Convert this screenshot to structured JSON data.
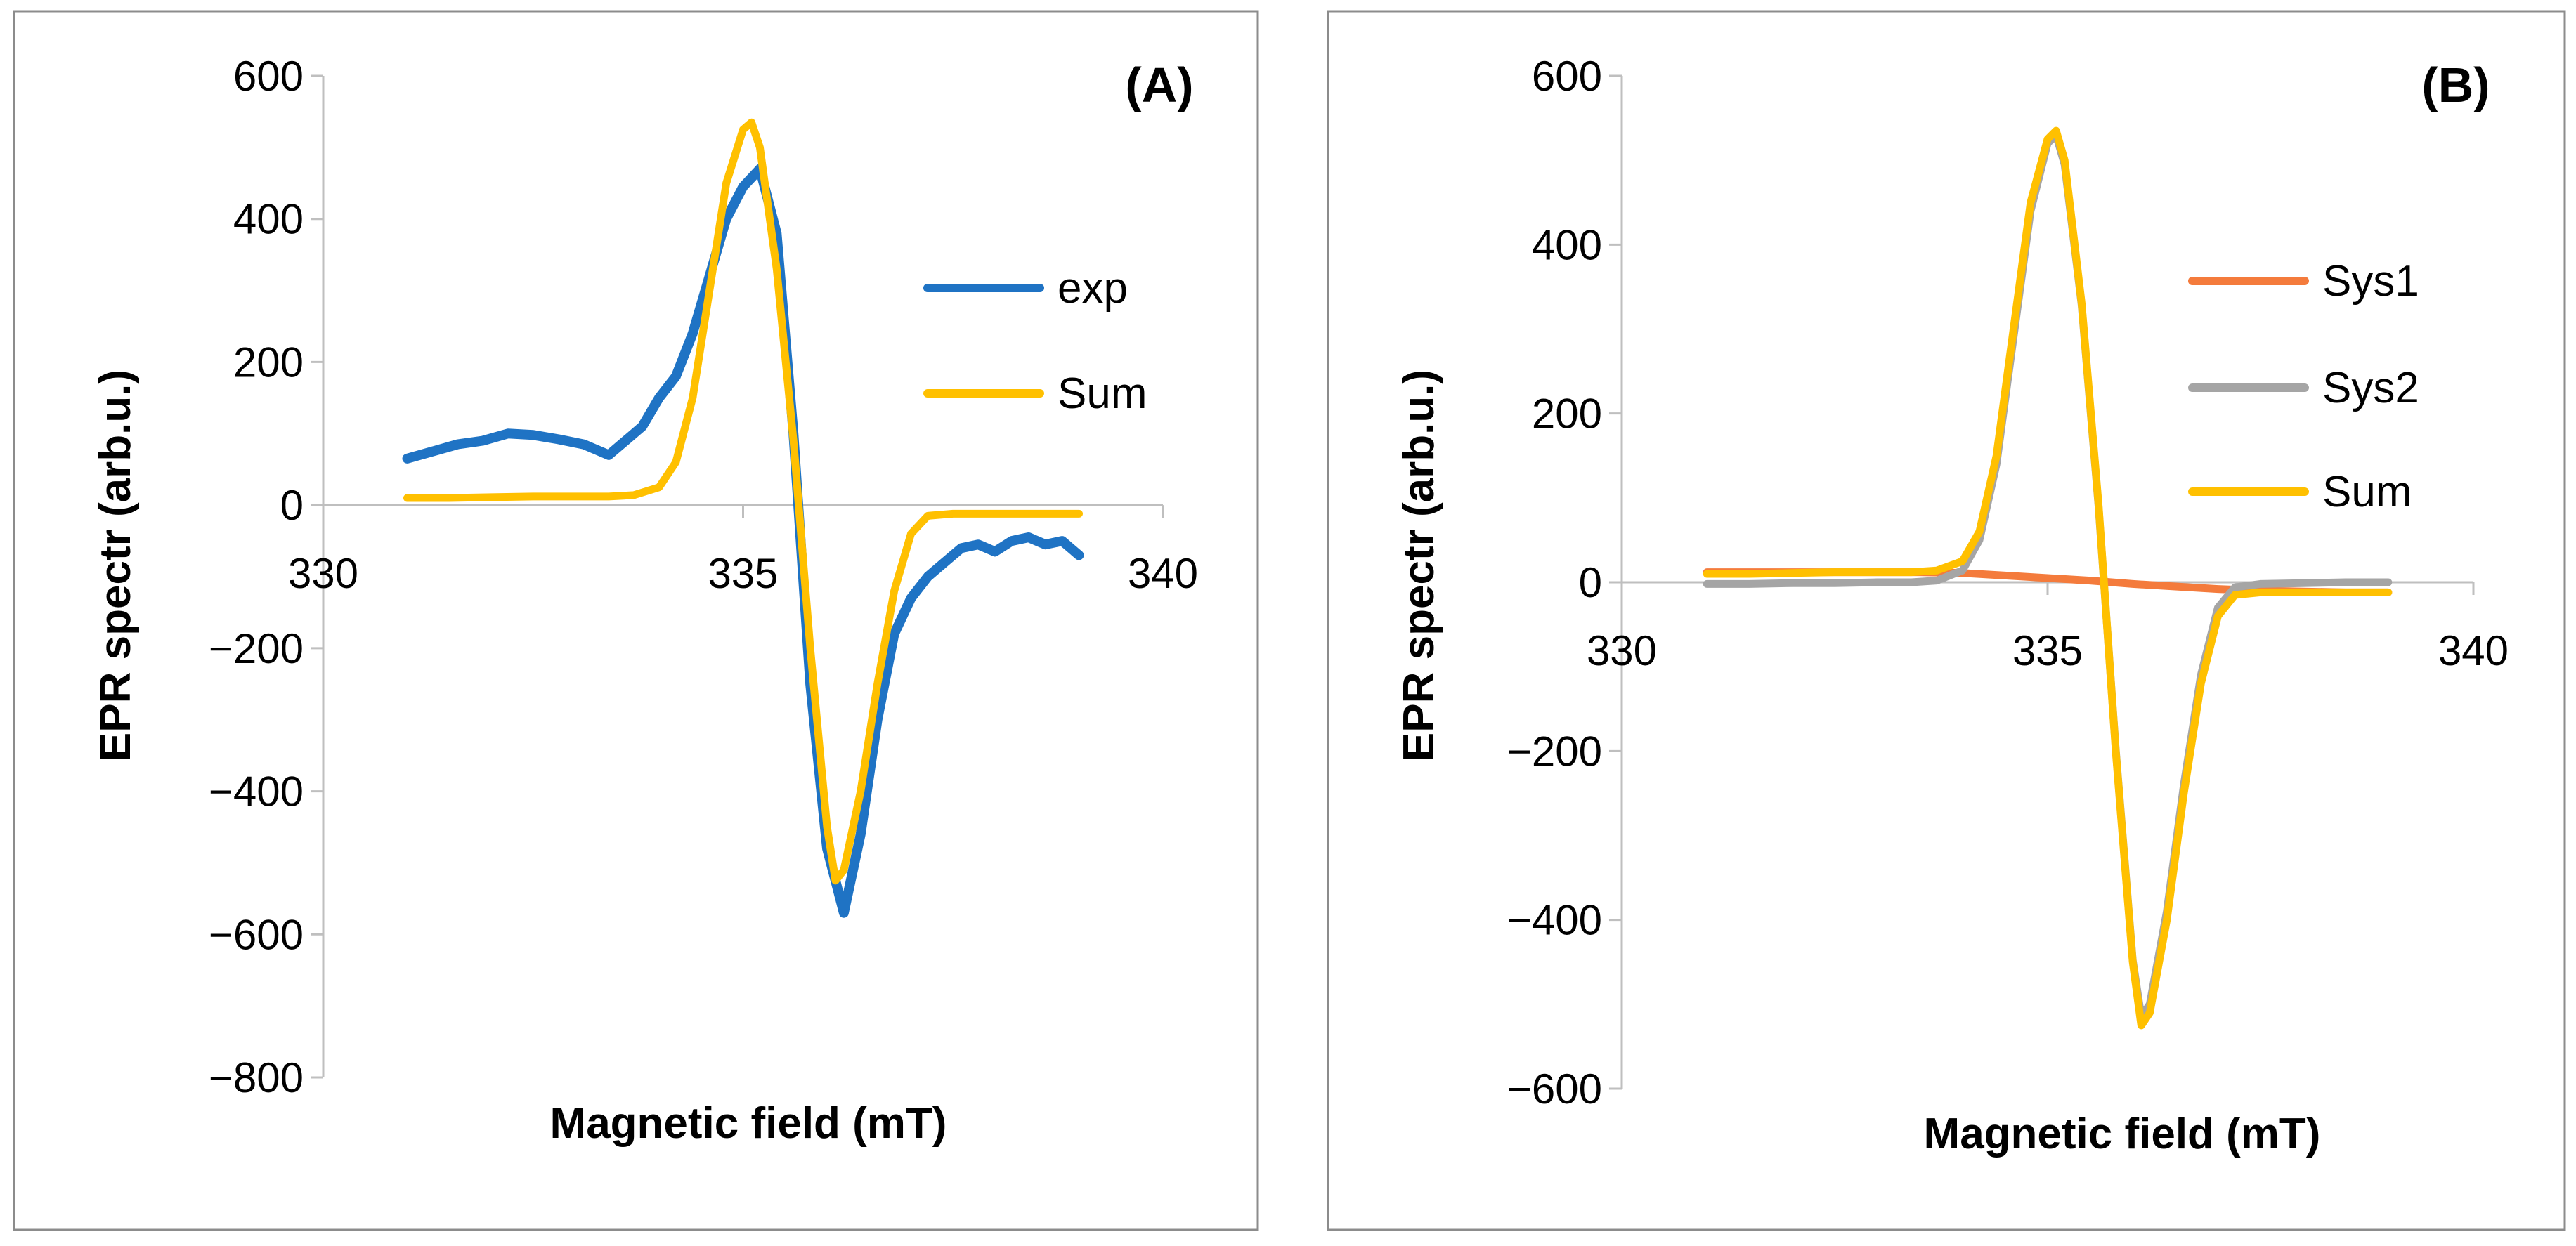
{
  "colors": {
    "exp": "#1f73c4",
    "sum": "#ffc000",
    "sys1": "#f47b3c",
    "sys2": "#a5a5a5"
  },
  "chart_data": [
    {
      "type": "line",
      "panel_label": "(A)",
      "xlabel": "Magnetic field (mT)",
      "ylabel": "EPR spectr (arb.u.)",
      "xlim": [
        330,
        340
      ],
      "ylim": [
        -800,
        600
      ],
      "x_ticks": [
        "330",
        "335",
        "340"
      ],
      "y_ticks": [
        "600",
        "400",
        "200",
        "0",
        "−200",
        "−400",
        "−600",
        "−800"
      ],
      "legend": [
        "exp",
        "Sum"
      ],
      "legend_position": "right",
      "series": [
        {
          "name": "exp",
          "color": "#1f73c4",
          "x": [
            331.0,
            331.3,
            331.6,
            331.9,
            332.2,
            332.5,
            332.8,
            333.1,
            333.4,
            333.6,
            333.8,
            334.0,
            334.2,
            334.4,
            334.6,
            334.8,
            335.0,
            335.2,
            335.4,
            335.6,
            335.8,
            336.0,
            336.2,
            336.4,
            336.6,
            336.8,
            337.0,
            337.2,
            337.4,
            337.6,
            337.8,
            338.0,
            338.2,
            338.4,
            338.6,
            338.8,
            339.0
          ],
          "y": [
            65,
            75,
            85,
            90,
            100,
            98,
            92,
            85,
            70,
            90,
            110,
            150,
            180,
            240,
            320,
            400,
            445,
            470,
            380,
            100,
            -250,
            -480,
            -570,
            -460,
            -300,
            -180,
            -130,
            -100,
            -80,
            -60,
            -55,
            -65,
            -50,
            -45,
            -55,
            -50,
            -70
          ]
        },
        {
          "name": "Sum",
          "color": "#ffc000",
          "x": [
            331.0,
            331.5,
            332.0,
            332.5,
            333.0,
            333.4,
            333.7,
            334.0,
            334.2,
            334.4,
            334.6,
            334.8,
            335.0,
            335.1,
            335.2,
            335.4,
            335.6,
            335.8,
            336.0,
            336.1,
            336.2,
            336.4,
            336.6,
            336.8,
            337.0,
            337.2,
            337.5,
            338.0,
            338.5,
            339.0
          ],
          "y": [
            10,
            10,
            11,
            12,
            12,
            12,
            14,
            25,
            60,
            150,
            300,
            450,
            525,
            535,
            500,
            330,
            90,
            -200,
            -450,
            -525,
            -510,
            -400,
            -250,
            -120,
            -40,
            -15,
            -12,
            -12,
            -12,
            -12
          ]
        }
      ]
    },
    {
      "type": "line",
      "panel_label": "(B)",
      "xlabel": "Magnetic field (mT)",
      "ylabel": "EPR spectr (arb.u.)",
      "xlim": [
        330,
        340
      ],
      "ylim": [
        -600,
        600
      ],
      "x_ticks": [
        "330",
        "335",
        "340"
      ],
      "y_ticks": [
        "600",
        "400",
        "200",
        "0",
        "−200",
        "−400",
        "−600"
      ],
      "legend": [
        "Sys1",
        "Sys2",
        "Sum"
      ],
      "legend_position": "right",
      "series": [
        {
          "name": "Sys1",
          "color": "#f47b3c",
          "x": [
            331.0,
            332.0,
            333.0,
            333.5,
            334.0,
            334.5,
            335.0,
            335.5,
            336.0,
            336.5,
            337.0,
            337.5,
            338.0,
            338.5,
            339.0
          ],
          "y": [
            12,
            12,
            12,
            12,
            11,
            8,
            5,
            2,
            -2,
            -5,
            -8,
            -10,
            -11,
            -12,
            -12
          ]
        },
        {
          "name": "Sys2",
          "color": "#a5a5a5",
          "x": [
            331.0,
            331.5,
            332.0,
            332.5,
            333.0,
            333.4,
            333.7,
            334.0,
            334.2,
            334.4,
            334.6,
            334.8,
            335.0,
            335.1,
            335.2,
            335.4,
            335.6,
            335.8,
            336.0,
            336.1,
            336.2,
            336.4,
            336.6,
            336.8,
            337.0,
            337.2,
            337.5,
            338.0,
            338.5,
            339.0
          ],
          "y": [
            -2,
            -2,
            -1,
            -1,
            0,
            0,
            2,
            14,
            50,
            140,
            290,
            440,
            520,
            530,
            495,
            328,
            88,
            -198,
            -448,
            -515,
            -500,
            -390,
            -240,
            -110,
            -30,
            -6,
            -2,
            -1,
            0,
            0
          ]
        },
        {
          "name": "Sum",
          "color": "#ffc000",
          "x": [
            331.0,
            331.5,
            332.0,
            332.5,
            333.0,
            333.4,
            333.7,
            334.0,
            334.2,
            334.4,
            334.6,
            334.8,
            335.0,
            335.1,
            335.2,
            335.4,
            335.6,
            335.8,
            336.0,
            336.1,
            336.2,
            336.4,
            336.6,
            336.8,
            337.0,
            337.2,
            337.5,
            338.0,
            338.5,
            339.0
          ],
          "y": [
            10,
            10,
            11,
            12,
            12,
            12,
            14,
            25,
            60,
            150,
            300,
            450,
            525,
            535,
            500,
            330,
            90,
            -200,
            -450,
            -525,
            -510,
            -400,
            -250,
            -120,
            -40,
            -15,
            -12,
            -12,
            -12,
            -12
          ]
        }
      ]
    }
  ]
}
